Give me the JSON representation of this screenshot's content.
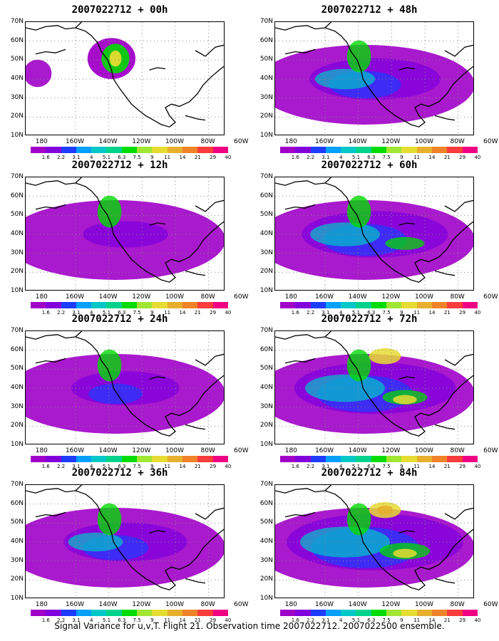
{
  "caption": "Signal Variance for u,v,T. Flight 21. Observation time 2007022712. 2007022500 ensemble.",
  "lat_labels": [
    "70N",
    "60N",
    "50N",
    "40N",
    "30N",
    "20N",
    "10N"
  ],
  "lon_labels": [
    "180",
    "160W",
    "140W",
    "120W",
    "100W",
    "80W",
    "60W"
  ],
  "colorbar": {
    "colors": [
      "#a000c8",
      "#8200dc",
      "#1e3cff",
      "#00a0ff",
      "#00c8c8",
      "#00d28c",
      "#00dc00",
      "#a0e632",
      "#e6dc32",
      "#e6af2d",
      "#f08228",
      "#fa3c3c",
      "#f00082"
    ],
    "labels": [
      "1.6",
      "2.2",
      "3.1",
      "4",
      "5.1",
      "6.3",
      "7.5",
      "9",
      "11",
      "14",
      "21",
      "29",
      "40"
    ]
  },
  "panels": [
    {
      "title": "2007022712 + 00h",
      "col": 0,
      "row": 0,
      "intensity": 0.15
    },
    {
      "title": "2007022712 + 12h",
      "col": 0,
      "row": 1,
      "intensity": 0.3
    },
    {
      "title": "2007022712 + 24h",
      "col": 0,
      "row": 2,
      "intensity": 0.45
    },
    {
      "title": "2007022712 + 36h",
      "col": 0,
      "row": 3,
      "intensity": 0.55
    },
    {
      "title": "2007022712 + 48h",
      "col": 1,
      "row": 0,
      "intensity": 0.6
    },
    {
      "title": "2007022712 + 60h",
      "col": 1,
      "row": 1,
      "intensity": 0.7
    },
    {
      "title": "2007022712 + 72h",
      "col": 1,
      "row": 2,
      "intensity": 0.8
    },
    {
      "title": "2007022712 + 84h",
      "col": 1,
      "row": 3,
      "intensity": 0.9
    }
  ]
}
